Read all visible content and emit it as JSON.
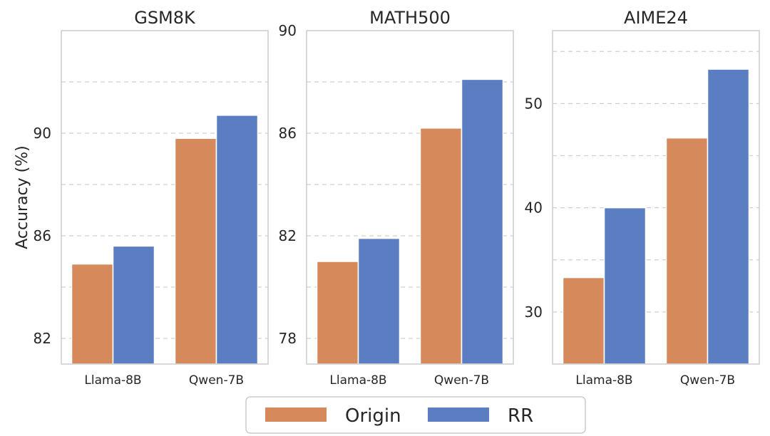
{
  "chart_data": {
    "type": "bar",
    "ylabel": "Accuracy (%)",
    "legend": {
      "placement": "bottom-center",
      "entries": [
        {
          "name": "Origin",
          "color": "#d68a5c"
        },
        {
          "name": "RR",
          "color": "#5b7ec2"
        }
      ]
    },
    "grid": true,
    "panels": [
      {
        "title": "GSM8K",
        "categories": [
          "Llama-8B",
          "Qwen-7B"
        ],
        "ylim": [
          81,
          94
        ],
        "yticks": [
          82,
          86,
          90
        ],
        "gridlines": [
          82,
          84,
          86,
          88,
          90,
          92
        ],
        "series": [
          {
            "name": "Origin",
            "values": [
              84.9,
              89.8
            ]
          },
          {
            "name": "RR",
            "values": [
              85.6,
              90.7
            ]
          }
        ]
      },
      {
        "title": "MATH500",
        "categories": [
          "Llama-8B",
          "Qwen-7B"
        ],
        "ylim": [
          77,
          90
        ],
        "yticks": [
          78,
          82,
          86,
          90
        ],
        "gridlines": [
          78,
          80,
          82,
          84,
          86,
          88
        ],
        "series": [
          {
            "name": "Origin",
            "values": [
              81.0,
              86.2
            ]
          },
          {
            "name": "RR",
            "values": [
              81.9,
              88.1
            ]
          }
        ]
      },
      {
        "title": "AIME24",
        "categories": [
          "Llama-8B",
          "Qwen-7B"
        ],
        "ylim": [
          25,
          57
        ],
        "yticks": [
          30,
          40,
          50
        ],
        "gridlines": [
          30,
          35,
          40,
          45,
          50,
          55
        ],
        "series": [
          {
            "name": "Origin",
            "values": [
              33.3,
              46.7
            ]
          },
          {
            "name": "RR",
            "values": [
              40.0,
              53.3
            ]
          }
        ]
      }
    ]
  }
}
